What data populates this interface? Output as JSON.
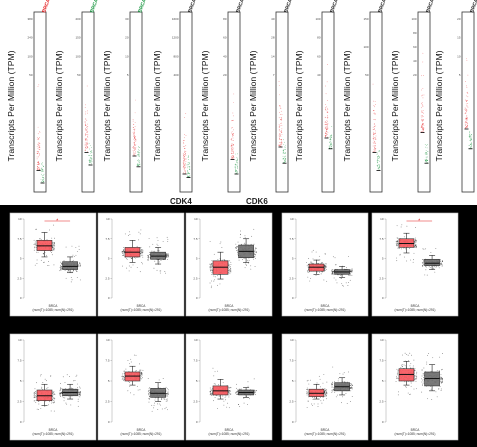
{
  "figure": {
    "colors": {
      "tumor": "#e41a1c",
      "normal": "#1a9641",
      "tumor_box": "#f8595f",
      "normal_box": "#6f6f6f",
      "sig_line": "#e41a1c"
    }
  },
  "top": {
    "ylabel": "Transcripts Per Million (TPM)",
    "gene_tag": "BRCA",
    "partial_labels": [
      "CDK4",
      "CDK6"
    ],
    "panels": [
      {
        "ticks": [
          "380",
          "240",
          "100",
          "50"
        ],
        "tumor_median": 0.12,
        "normal_median": 0.05,
        "tag_color": "#e41a1c"
      },
      {
        "ticks": [
          "200",
          "150",
          "100",
          "50"
        ],
        "tumor_median": 0.22,
        "normal_median": 0.15,
        "tag_color": "#1a9641"
      },
      {
        "ticks": [
          "30",
          "20",
          "10",
          "5"
        ],
        "tumor_median": 0.2,
        "normal_median": 0.14,
        "tag_color": "#1a9641"
      },
      {
        "ticks": [
          "1600",
          "1200",
          "800",
          "400"
        ],
        "tumor_median": 0.1,
        "normal_median": 0.08,
        "tag_color": "#222222"
      },
      {
        "ticks": [
          "80",
          "60",
          "40",
          "20"
        ],
        "tumor_median": 0.18,
        "normal_median": 0.1,
        "tag_color": "#222222"
      },
      {
        "ticks": [
          "40",
          "28",
          "14",
          "7"
        ],
        "tumor_median": 0.25,
        "normal_median": 0.16,
        "tag_color": "#222222"
      },
      {
        "ticks": [
          "100",
          "80",
          "60",
          "40"
        ],
        "tumor_median": 0.3,
        "normal_median": 0.24,
        "tag_color": "#222222"
      },
      {
        "ticks": [
          "150",
          "100",
          "50"
        ],
        "tumor_median": 0.22,
        "normal_median": 0.12,
        "tag_color": "#222222"
      },
      {
        "ticks": [
          "100",
          "80",
          "60",
          "40",
          "20"
        ],
        "tumor_median": 0.33,
        "normal_median": 0.16,
        "tag_color": "#222222"
      },
      {
        "ticks": [
          "20",
          "15",
          "10",
          "5"
        ],
        "tumor_median": 0.35,
        "normal_median": 0.24,
        "tag_color": "#222222"
      }
    ]
  },
  "box_caption": "BRCA",
  "box_subcaption": "(num(T)=1085; num(N)=291)",
  "chart_data": [
    {
      "type": "box",
      "categories": [
        "Tumor",
        "Normal"
      ],
      "series": [
        {
          "values": [
            [
              5.2,
              6.0,
              6.6,
              7.3,
              8.3
            ],
            [
              3.2,
              3.6,
              4.0,
              4.6,
              5.2
            ]
          ]
        }
      ],
      "significant": true,
      "ylim": [
        0,
        10
      ]
    },
    {
      "type": "box",
      "categories": [
        "Tumor",
        "Normal"
      ],
      "series": [
        {
          "values": [
            [
              4.5,
              5.2,
              5.8,
              6.4,
              7.3
            ],
            [
              4.3,
              4.9,
              5.3,
              5.8,
              6.4
            ]
          ]
        }
      ],
      "significant": false,
      "ylim": [
        0,
        10
      ]
    },
    {
      "type": "box",
      "categories": [
        "Tumor",
        "Normal"
      ],
      "series": [
        {
          "values": [
            [
              2.4,
              3.0,
              3.9,
              4.7,
              5.8
            ],
            [
              4.5,
              5.1,
              5.9,
              6.7,
              7.5
            ]
          ]
        }
      ],
      "significant": false,
      "ylim": [
        0,
        10
      ]
    },
    {
      "type": "box",
      "categories": [
        "Tumor",
        "Normal"
      ],
      "series": [
        {
          "values": [
            [
              3.0,
              3.4,
              3.9,
              4.3,
              4.8
            ],
            [
              2.6,
              3.0,
              3.3,
              3.6,
              4.0
            ]
          ]
        }
      ],
      "significant": false,
      "ylim": [
        0,
        10
      ]
    },
    {
      "type": "box",
      "categories": [
        "Tumor",
        "Normal"
      ],
      "series": [
        {
          "values": [
            [
              5.7,
              6.4,
              6.9,
              7.5,
              8.2
            ],
            [
              3.6,
              4.1,
              4.4,
              4.9,
              5.4
            ]
          ]
        }
      ],
      "significant": true,
      "ylim": [
        0,
        10
      ]
    },
    {
      "type": "box",
      "categories": [
        "Tumor",
        "Normal"
      ],
      "series": [
        {
          "values": [
            [
              2.0,
              2.6,
              3.2,
              3.9,
              4.6
            ],
            [
              2.8,
              3.2,
              3.6,
              4.0,
              4.6
            ]
          ]
        }
      ],
      "significant": false,
      "ylim": [
        0,
        10
      ]
    },
    {
      "type": "box",
      "categories": [
        "Tumor",
        "Normal"
      ],
      "series": [
        {
          "values": [
            [
              4.5,
              5.0,
              5.6,
              6.1,
              6.8
            ],
            [
              2.5,
              3.0,
              3.5,
              4.1,
              4.8
            ]
          ]
        }
      ],
      "significant": false,
      "ylim": [
        0,
        10
      ]
    },
    {
      "type": "box",
      "categories": [
        "Tumor",
        "Normal"
      ],
      "series": [
        {
          "values": [
            [
              2.8,
              3.3,
              3.8,
              4.4,
              5.2
            ],
            [
              3.0,
              3.3,
              3.6,
              3.9,
              4.2
            ]
          ]
        }
      ],
      "significant": false,
      "ylim": [
        0,
        10
      ]
    },
    {
      "type": "box",
      "categories": [
        "Tumor",
        "Normal"
      ],
      "series": [
        {
          "values": [
            [
              2.8,
              3.1,
              3.5,
              4.0,
              4.6
            ],
            [
              3.3,
              3.8,
              4.3,
              4.8,
              5.4
            ]
          ]
        }
      ],
      "significant": false,
      "ylim": [
        0,
        10
      ]
    },
    {
      "type": "box",
      "categories": [
        "Tumor",
        "Normal"
      ],
      "series": [
        {
          "values": [
            [
              4.5,
              5.0,
              5.8,
              6.5,
              7.4
            ],
            [
              3.8,
              4.4,
              5.3,
              6.1,
              7.0
            ]
          ]
        }
      ],
      "significant": false,
      "ylim": [
        0,
        10
      ]
    }
  ]
}
